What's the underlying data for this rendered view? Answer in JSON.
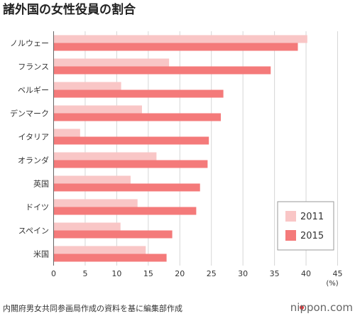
{
  "title": "諸外国の女性役員の割合",
  "source": "内閣府男女共同参画局作成の資料を基に編集部作成",
  "brand": "nippon.com",
  "colors": {
    "series_2011": "#f9c6c6",
    "series_2015": "#f47a7a",
    "brand_dot": "#e8383d"
  },
  "chart_data": {
    "type": "bar",
    "orientation": "horizontal",
    "categories": [
      "ノルウェー",
      "フランス",
      "ベルギー",
      "デンマーク",
      "イタリア",
      "オランダ",
      "英国",
      "ドイツ",
      "スペイン",
      "米国"
    ],
    "series": [
      {
        "name": "2011",
        "values": [
          40.2,
          18.3,
          10.7,
          14.0,
          4.2,
          16.3,
          12.2,
          13.3,
          10.6,
          14.6
        ]
      },
      {
        "name": "2015",
        "values": [
          38.7,
          34.4,
          26.9,
          26.5,
          24.6,
          24.4,
          23.2,
          22.6,
          18.8,
          17.9
        ]
      }
    ],
    "xlim": [
      0,
      45
    ],
    "xticks": [
      0,
      5,
      10,
      15,
      20,
      25,
      30,
      35,
      40,
      45
    ],
    "xunit": "(%)",
    "grid": true,
    "legend": "bottom-right"
  }
}
